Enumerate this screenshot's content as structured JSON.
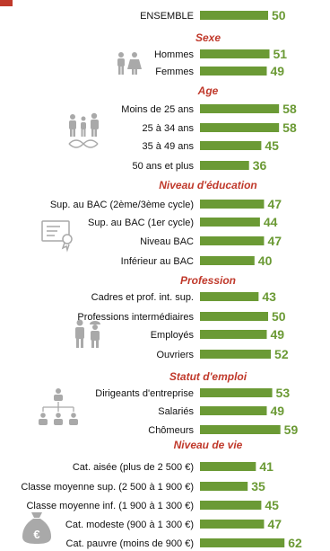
{
  "colors": {
    "bar": "#6b9a35",
    "value": "#6b9a35",
    "section": "#c0392b",
    "label": "#111111",
    "icon": "#a9a9a9",
    "corner": "#c0392b"
  },
  "icons": [
    "people-gender-icon",
    "family-dna-icon",
    "diploma-icon",
    "workers-icon",
    "org-chart-icon",
    "money-bag-icon"
  ],
  "chart_data": {
    "type": "bar",
    "orientation": "horizontal",
    "ylim": [
      0,
      100
    ],
    "rows": [
      {
        "kind": "item",
        "label": "ENSEMBLE",
        "value": 50
      },
      {
        "kind": "section",
        "label": "Sexe"
      },
      {
        "kind": "item",
        "label": "Hommes",
        "value": 51
      },
      {
        "kind": "item",
        "label": "Femmes",
        "value": 49
      },
      {
        "kind": "section",
        "label": "Age"
      },
      {
        "kind": "item",
        "label": "Moins de 25 ans",
        "value": 58
      },
      {
        "kind": "item",
        "label": "25 à 34 ans",
        "value": 58
      },
      {
        "kind": "item",
        "label": "35 à 49 ans",
        "value": 45
      },
      {
        "kind": "item",
        "label": "50 ans et plus",
        "value": 36
      },
      {
        "kind": "section",
        "label": "Niveau d'éducation"
      },
      {
        "kind": "item",
        "label": "Sup. au BAC (2ème/3ème cycle)",
        "value": 47
      },
      {
        "kind": "item",
        "label": "Sup. au BAC (1er cycle)",
        "value": 44
      },
      {
        "kind": "item",
        "label": "Niveau BAC",
        "value": 47
      },
      {
        "kind": "item",
        "label": "Inférieur au BAC",
        "value": 40
      },
      {
        "kind": "section",
        "label": "Profession"
      },
      {
        "kind": "item",
        "label": "Cadres et prof. int. sup.",
        "value": 43
      },
      {
        "kind": "item",
        "label": "Professions intermédiaires",
        "value": 50
      },
      {
        "kind": "item",
        "label": "Employés",
        "value": 49
      },
      {
        "kind": "item",
        "label": "Ouvriers",
        "value": 52
      },
      {
        "kind": "section",
        "label": "Statut d'emploi"
      },
      {
        "kind": "item",
        "label": "Dirigeants d'entreprise",
        "value": 53
      },
      {
        "kind": "item",
        "label": "Salariés",
        "value": 49
      },
      {
        "kind": "item",
        "label": "Chômeurs",
        "value": 59
      },
      {
        "kind": "section",
        "label": "Niveau de vie"
      },
      {
        "kind": "item",
        "label": "Cat. aisée (plus de 2 500 €)",
        "value": 41
      },
      {
        "kind": "item",
        "label": "Classe moyenne sup. (2 500 à 1 900 €)",
        "value": 35
      },
      {
        "kind": "item",
        "label": "Classe moyenne inf. (1 900 à 1 300 €)",
        "value": 45
      },
      {
        "kind": "item",
        "label": "Cat. modeste (900 à 1 300 €)",
        "value": 47
      },
      {
        "kind": "item",
        "label": "Cat. pauvre (moins de 900 €)",
        "value": 62
      }
    ]
  }
}
